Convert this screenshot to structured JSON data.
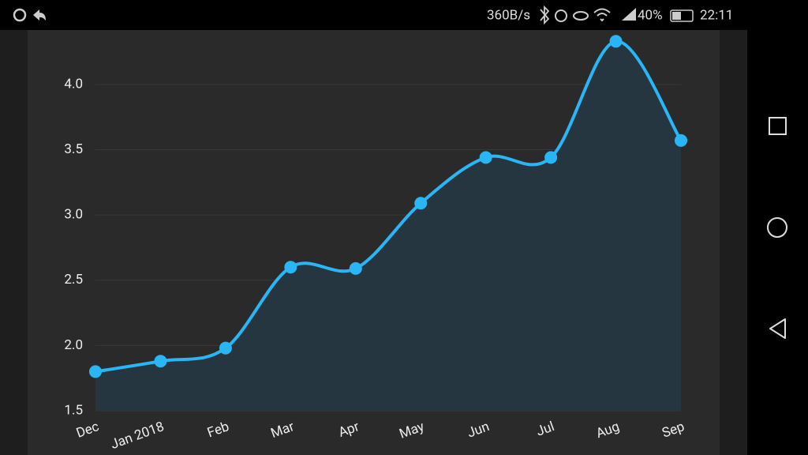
{
  "status_bar": {
    "network_speed": "360B/s",
    "battery": "40%",
    "time": "22:11"
  },
  "chart_data": {
    "type": "line",
    "categories": [
      "Dec",
      "Jan 2018",
      "Feb",
      "Mar",
      "Apr",
      "May",
      "Jun",
      "Jul",
      "Aug",
      "Sep"
    ],
    "values": [
      1.8,
      1.88,
      1.98,
      2.6,
      2.59,
      3.09,
      3.44,
      3.44,
      4.33,
      3.57
    ],
    "color": "#29b6f6",
    "ylim": [
      1.5,
      4.35
    ],
    "yticks": [
      1.5,
      {
        "value": 2,
        "label": "2.0"
      },
      2.5,
      {
        "value": 3,
        "label": "3.0"
      },
      3.5,
      {
        "value": 4,
        "label": "4.0"
      }
    ],
    "grid": true,
    "smooth": true,
    "area": true
  }
}
